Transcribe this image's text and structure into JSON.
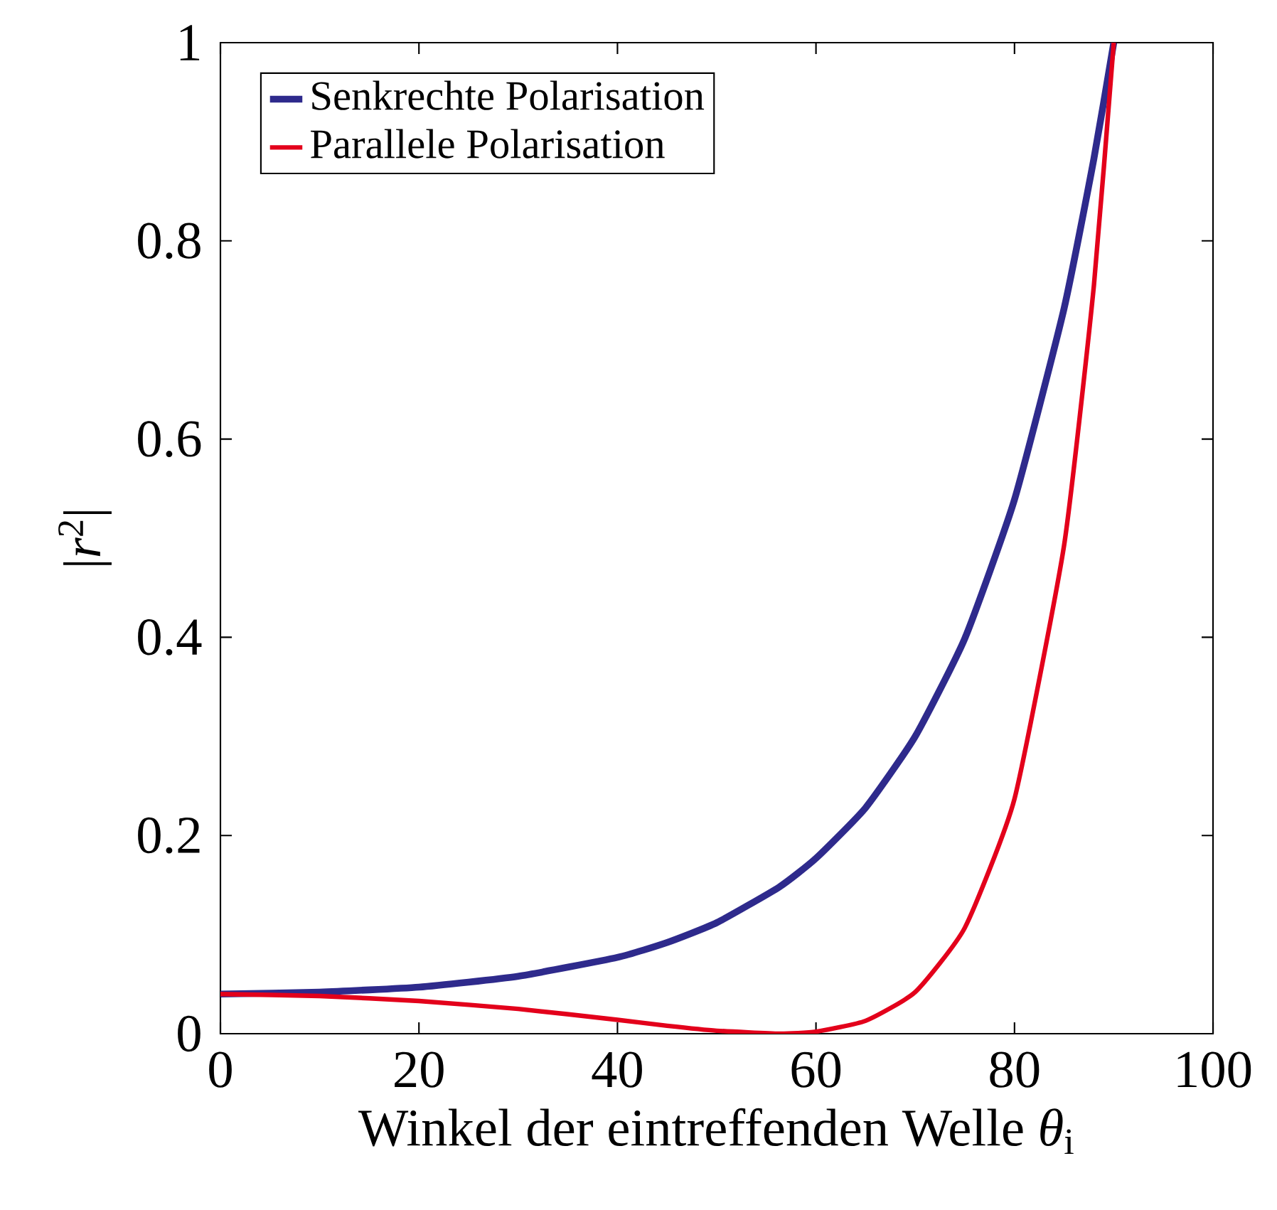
{
  "chart_data": {
    "type": "line",
    "xlabel": "Winkel der eintreffenden Welle *θ*$_{i}$",
    "ylabel": "|*r*$^{2}$|",
    "x": [
      0,
      10,
      20,
      30,
      40,
      45,
      50,
      56.3,
      60,
      65,
      70,
      75,
      80,
      85,
      88,
      90
    ],
    "series": [
      {
        "name": "Senkrechte Polarisation",
        "color": "#2e2a8c",
        "values": [
          0.04,
          0.042,
          0.047,
          0.058,
          0.077,
          0.092,
          0.112,
          0.148,
          0.177,
          0.228,
          0.3,
          0.399,
          0.539,
          0.732,
          0.883,
          1
        ]
      },
      {
        "name": "Parallele Polarisation",
        "color": "#e3001b",
        "values": [
          0.04,
          0.038,
          0.033,
          0.025,
          0.014,
          0.008,
          0.003,
          0,
          0.002,
          0.013,
          0.042,
          0.107,
          0.237,
          0.493,
          0.755,
          1
        ]
      }
    ],
    "xlim": [
      0,
      100
    ],
    "xticks": [
      0,
      20,
      40,
      60,
      80,
      100
    ],
    "ylim": [
      0,
      1
    ],
    "yticks": [
      0,
      0.2,
      0.4,
      0.6,
      0.8,
      1
    ],
    "grid": false,
    "legend": "top left",
    "marker": "none",
    "line_style": "solid"
  }
}
